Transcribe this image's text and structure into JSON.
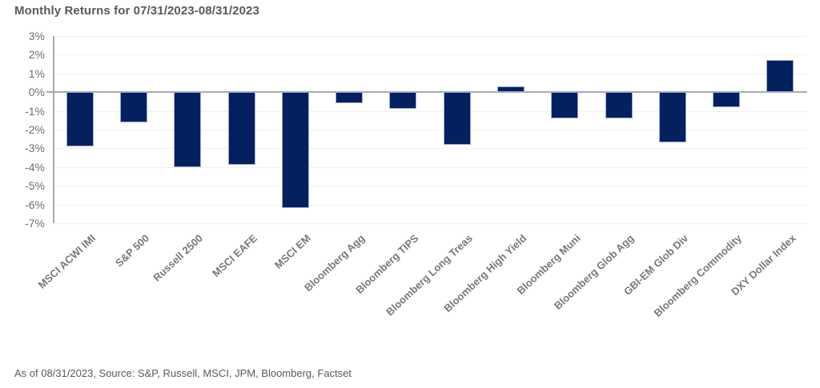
{
  "footer": {
    "text": "As of 08/31/2023, Source: S&P, Russell, MSCI, JPM, Bloomberg, Factset"
  },
  "chart_data": {
    "type": "bar",
    "title": "Monthly Returns for 07/31/2023-08/31/2023",
    "categories": [
      "MSCI ACWI IMI",
      "S&P 500",
      "Russell 2500",
      "MSCI EAFE",
      "MSCI EM",
      "Bloomberg Agg",
      "Bloomberg TIPS",
      "Bloomberg Long Treas",
      "Bloomberg High Yield",
      "Bloomberg Muni",
      "Bloomberg Glob Agg",
      "GBI-EM Glob Div",
      "Bloomberg Commodity",
      "DXY Dollar Index"
    ],
    "values": [
      -2.9,
      -1.6,
      -4.0,
      -3.9,
      -6.2,
      -0.6,
      -0.9,
      -2.8,
      0.3,
      -1.4,
      -1.4,
      -2.7,
      -0.8,
      1.7
    ],
    "xlabel": "",
    "ylabel": "",
    "ylim": [
      -7,
      3
    ],
    "ytick_step": 1,
    "ytick_suffix": "%",
    "grid": true,
    "legend": false,
    "bar_color": "#05205e",
    "bar_border_color": "#9babd4",
    "zero_line_color": "#a7a9ac",
    "gridline_color": "#f0f0f1",
    "label_color": "#77787b",
    "tick_color": "#6d6e71",
    "title_color": "#58595b"
  }
}
